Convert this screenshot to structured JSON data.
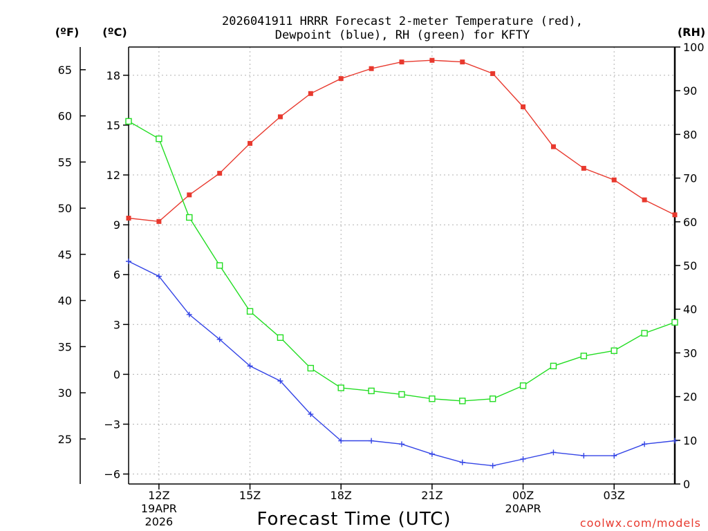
{
  "chart_data": {
    "type": "line",
    "title": [
      "2026041911 HRRR Forecast 2-meter Temperature (red),",
      "Dewpoint (blue), RH (green) for KFTY"
    ],
    "xlabel": "Forecast Time (UTC)",
    "units": {
      "f": "(ºF)",
      "c": "(ºC)",
      "rh": "(RH)"
    },
    "x": [
      11,
      12,
      13,
      14,
      15,
      16,
      17,
      18,
      19,
      20,
      21,
      22,
      23,
      24,
      25,
      26,
      27,
      28,
      29
    ],
    "xlim": [
      11,
      29
    ],
    "x_ticks": [
      {
        "x": 12,
        "lines": [
          "12Z",
          "19APR",
          "2026"
        ]
      },
      {
        "x": 15,
        "lines": [
          "15Z"
        ]
      },
      {
        "x": 18,
        "lines": [
          "18Z"
        ]
      },
      {
        "x": 21,
        "lines": [
          "21Z"
        ]
      },
      {
        "x": 24,
        "lines": [
          "00Z",
          "20APR"
        ]
      },
      {
        "x": 27,
        "lines": [
          "03Z"
        ]
      }
    ],
    "y_left_c": {
      "lim": [
        -6.6,
        19.7
      ],
      "ticks": [
        18,
        15,
        12,
        9,
        6,
        3,
        0,
        -3,
        -6
      ],
      "tick_labels": [
        "18",
        "15",
        "12",
        "9",
        "6",
        "3",
        "0",
        "−3",
        "−6"
      ]
    },
    "y_left_f": {
      "lim": [
        20.12,
        67.46
      ],
      "ticks": [
        65,
        60,
        55,
        50,
        45,
        40,
        35,
        30,
        25
      ],
      "tick_labels": [
        "65",
        "60",
        "55",
        "50",
        "45",
        "40",
        "35",
        "30",
        "25"
      ]
    },
    "y_right_rh": {
      "lim": [
        0,
        100
      ],
      "ticks": [
        100,
        90,
        80,
        70,
        60,
        50,
        40,
        30,
        20,
        10,
        0
      ],
      "tick_labels": [
        "100",
        "90",
        "80",
        "70",
        "60",
        "50",
        "40",
        "30",
        "20",
        "10",
        "0"
      ]
    },
    "grid": true,
    "series": [
      {
        "name": "Temperature",
        "axis": "c",
        "color": "#e8392e",
        "marker": "filled-square",
        "values": [
          9.4,
          9.2,
          10.8,
          12.1,
          13.9,
          15.5,
          16.9,
          17.8,
          18.4,
          18.8,
          18.9,
          18.8,
          18.1,
          16.1,
          13.7,
          12.4,
          11.7,
          10.5,
          9.6
        ]
      },
      {
        "name": "Dewpoint",
        "axis": "c",
        "color": "#3344e6",
        "marker": "plus",
        "values": [
          6.8,
          5.9,
          3.6,
          2.1,
          0.5,
          -0.4,
          -2.4,
          -4.0,
          -4.0,
          -4.2,
          -4.8,
          -5.3,
          -5.5,
          -5.1,
          -4.7,
          -4.9,
          -4.9,
          -4.2,
          -4.0
        ]
      },
      {
        "name": "RH",
        "axis": "rh",
        "color": "#22dd22",
        "marker": "hollow-square",
        "values": [
          83,
          79,
          61,
          50,
          39.5,
          33.5,
          26.5,
          22,
          21.3,
          20.5,
          19.5,
          19,
          19.5,
          22.5,
          27,
          29.3,
          30.5,
          34.5,
          37
        ]
      }
    ]
  },
  "credit": "coolwx.com/models"
}
